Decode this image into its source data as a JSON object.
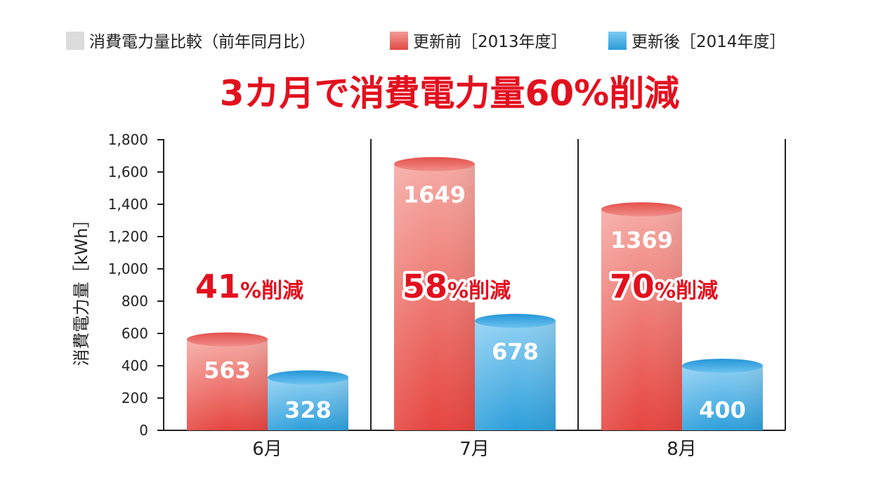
{
  "legend": {
    "title": "消費電力量比較（前年同月比）",
    "before": "更新前［2013年度］",
    "after": "更新後［2014年度］"
  },
  "headline": "3カ月で消費電力量60%削減",
  "colors": {
    "before": "#e8504e",
    "after": "#2fa3dd",
    "headline": "#e3101e",
    "legend_box": "#dcdcdc"
  },
  "chart_data": {
    "type": "bar",
    "categories": [
      "6月",
      "7月",
      "8月"
    ],
    "series": [
      {
        "name": "更新前［2013年度］",
        "values": [
          563,
          1649,
          1369
        ]
      },
      {
        "name": "更新後［2014年度］",
        "values": [
          328,
          678,
          400
        ]
      }
    ],
    "value_labels": [
      [
        "563",
        "1649",
        "1369"
      ],
      [
        "328",
        "678",
        "400"
      ]
    ],
    "reduction_labels": [
      {
        "number": "41",
        "suffix": "%削減"
      },
      {
        "number": "58",
        "suffix": "%削減"
      },
      {
        "number": "70",
        "suffix": "%削減"
      }
    ],
    "ylabel": "消費電力量［kWh］",
    "ylim": [
      0,
      1800
    ],
    "yticks": [
      0,
      200,
      400,
      600,
      800,
      1000,
      1200,
      1400,
      1600,
      1800
    ],
    "ytick_labels": [
      "0",
      "200",
      "400",
      "600",
      "800",
      "1,000",
      "1,200",
      "1,400",
      "1,600",
      "1,800"
    ],
    "grid": false,
    "legend_position": "top"
  }
}
